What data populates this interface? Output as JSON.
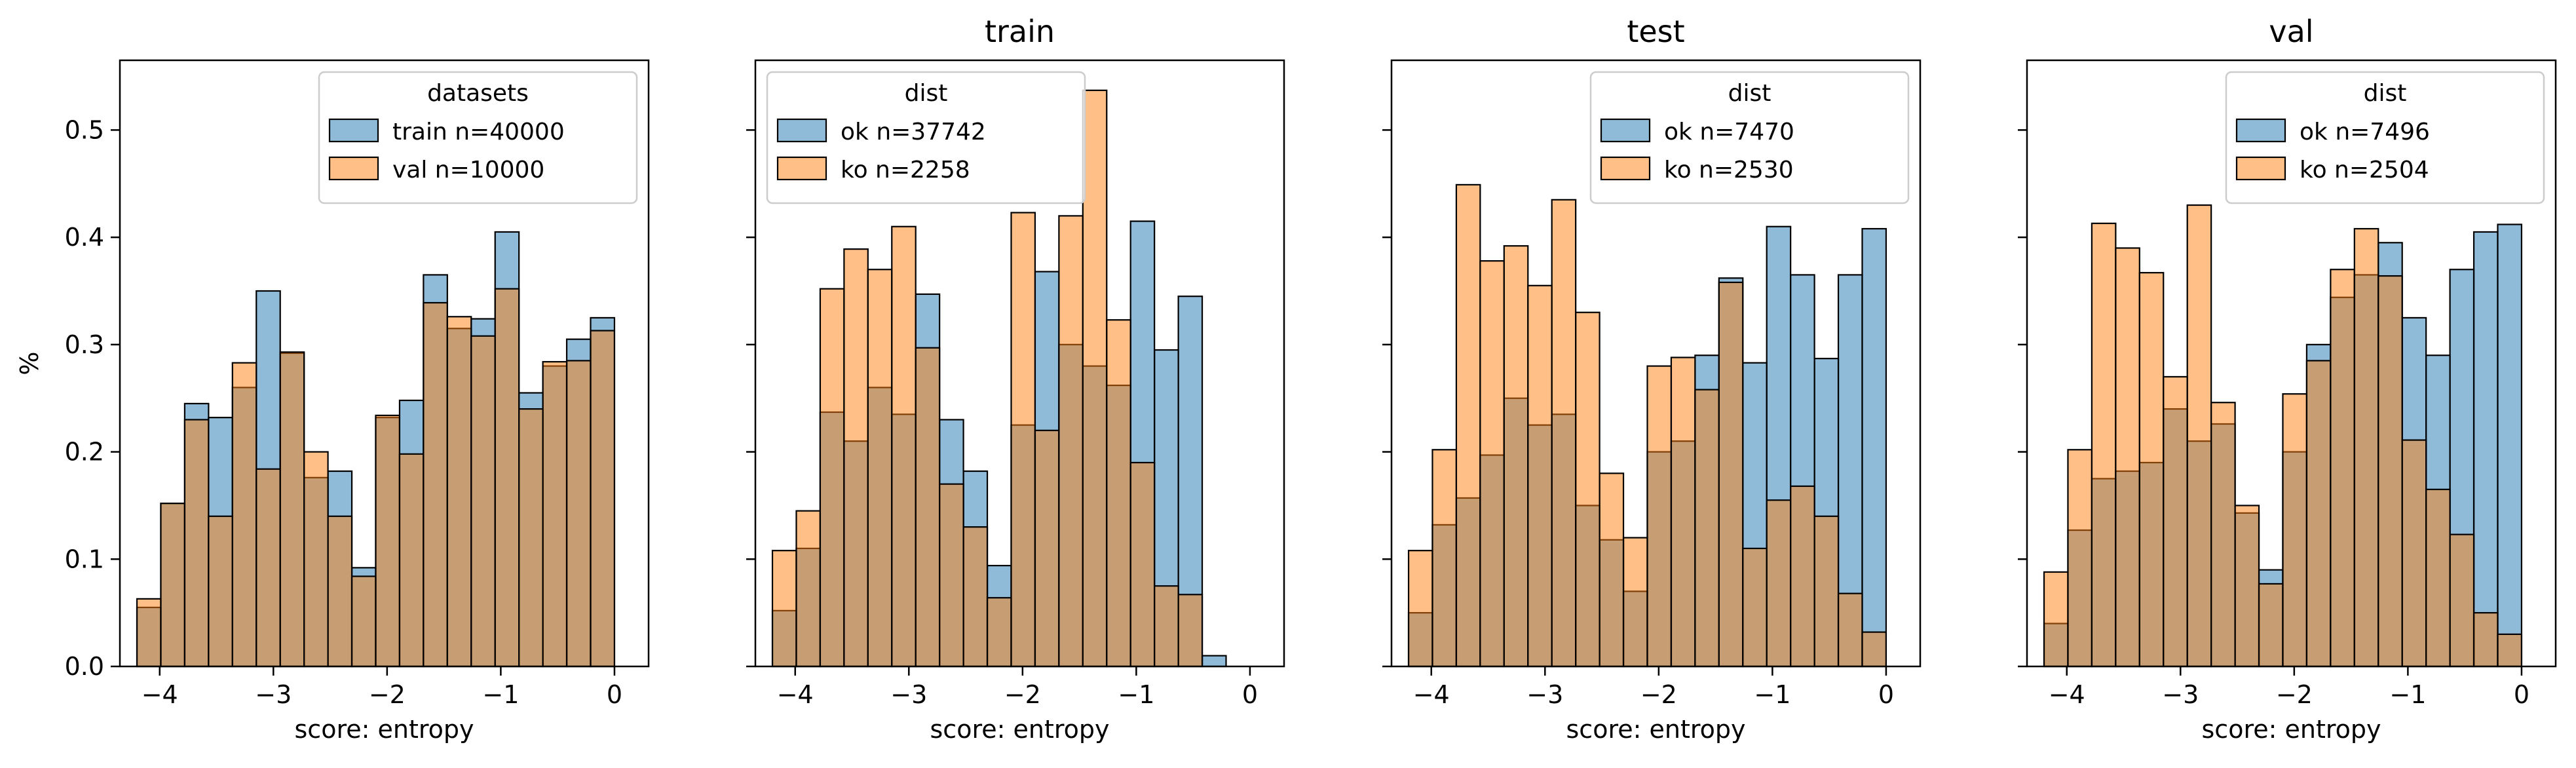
{
  "chart_data": [
    {
      "type": "bar",
      "subtype": "histogram",
      "title": "",
      "xlabel": "score: entropy",
      "ylabel": "%",
      "xlim": [
        -4.35,
        0.3
      ],
      "ylim": [
        0,
        0.565
      ],
      "xticks": [
        "−4",
        "−3",
        "−2",
        "−1",
        "0"
      ],
      "xtick_values": [
        -4,
        -3,
        -2,
        -1,
        0
      ],
      "yticks": [
        "0.0",
        "0.1",
        "0.2",
        "0.3",
        "0.4",
        "0.5"
      ],
      "ytick_values": [
        0,
        0.1,
        0.2,
        0.3,
        0.4,
        0.5
      ],
      "show_yticklabels": true,
      "bin_edges": [
        -4.2,
        -3.99,
        -3.78,
        -3.57,
        -3.36,
        -3.15,
        -2.94,
        -2.73,
        -2.52,
        -2.31,
        -2.1,
        -1.89,
        -1.68,
        -1.47,
        -1.26,
        -1.05,
        -0.84,
        -0.63,
        -0.42,
        -0.21,
        0.0
      ],
      "legend": {
        "title": "datasets",
        "position": "upper right"
      },
      "series": [
        {
          "name": "train n=40000",
          "color": "#1f77b4",
          "values": [
            0.055,
            0.152,
            0.245,
            0.232,
            0.26,
            0.35,
            0.292,
            0.176,
            0.182,
            0.092,
            0.232,
            0.248,
            0.365,
            0.315,
            0.324,
            0.405,
            0.255,
            0.28,
            0.305,
            0.325
          ]
        },
        {
          "name": "val n=10000",
          "color": "#ff7f0e",
          "values": [
            0.063,
            0.152,
            0.23,
            0.14,
            0.283,
            0.184,
            0.293,
            0.2,
            0.14,
            0.084,
            0.234,
            0.198,
            0.339,
            0.326,
            0.308,
            0.352,
            0.24,
            0.284,
            0.285,
            0.313
          ]
        }
      ]
    },
    {
      "type": "bar",
      "subtype": "histogram",
      "title": "train",
      "xlabel": "score: entropy",
      "ylabel": "",
      "xlim": [
        -4.35,
        0.3
      ],
      "ylim": [
        0,
        0.565
      ],
      "xticks": [
        "−4",
        "−3",
        "−2",
        "−1",
        "0"
      ],
      "xtick_values": [
        -4,
        -3,
        -2,
        -1,
        0
      ],
      "yticks": [
        "0.0",
        "0.1",
        "0.2",
        "0.3",
        "0.4",
        "0.5"
      ],
      "ytick_values": [
        0,
        0.1,
        0.2,
        0.3,
        0.4,
        0.5
      ],
      "show_yticklabels": false,
      "bin_edges": [
        -4.2,
        -3.99,
        -3.78,
        -3.57,
        -3.36,
        -3.15,
        -2.94,
        -2.73,
        -2.52,
        -2.31,
        -2.1,
        -1.89,
        -1.68,
        -1.47,
        -1.26,
        -1.05,
        -0.84,
        -0.63,
        -0.42,
        -0.21,
        0.0
      ],
      "legend": {
        "title": "dist",
        "position": "upper left"
      },
      "series": [
        {
          "name": "ok n=37742",
          "color": "#1f77b4",
          "values": [
            0.052,
            0.11,
            0.237,
            0.21,
            0.26,
            0.235,
            0.347,
            0.23,
            0.182,
            0.094,
            0.225,
            0.368,
            0.3,
            0.28,
            0.262,
            0.415,
            0.295,
            0.345,
            0.01,
            0.0
          ]
        },
        {
          "name": "ko n=2258",
          "color": "#ff7f0e",
          "values": [
            0.108,
            0.145,
            0.352,
            0.389,
            0.37,
            0.41,
            0.297,
            0.17,
            0.13,
            0.064,
            0.423,
            0.22,
            0.42,
            0.537,
            0.323,
            0.19,
            0.075,
            0.067,
            0.0,
            0.0
          ]
        }
      ]
    },
    {
      "type": "bar",
      "subtype": "histogram",
      "title": "test",
      "xlabel": "score: entropy",
      "ylabel": "",
      "xlim": [
        -4.35,
        0.3
      ],
      "ylim": [
        0,
        0.565
      ],
      "xticks": [
        "−4",
        "−3",
        "−2",
        "−1",
        "0"
      ],
      "xtick_values": [
        -4,
        -3,
        -2,
        -1,
        0
      ],
      "yticks": [
        "0.0",
        "0.1",
        "0.2",
        "0.3",
        "0.4",
        "0.5"
      ],
      "ytick_values": [
        0,
        0.1,
        0.2,
        0.3,
        0.4,
        0.5
      ],
      "show_yticklabels": false,
      "bin_edges": [
        -4.2,
        -3.99,
        -3.78,
        -3.57,
        -3.36,
        -3.15,
        -2.94,
        -2.73,
        -2.52,
        -2.31,
        -2.1,
        -1.89,
        -1.68,
        -1.47,
        -1.26,
        -1.05,
        -0.84,
        -0.63,
        -0.42,
        -0.21,
        0.0
      ],
      "legend": {
        "title": "dist",
        "position": "upper right"
      },
      "series": [
        {
          "name": "ok n=7470",
          "color": "#1f77b4",
          "values": [
            0.05,
            0.132,
            0.157,
            0.197,
            0.25,
            0.225,
            0.235,
            0.15,
            0.118,
            0.07,
            0.2,
            0.21,
            0.29,
            0.362,
            0.283,
            0.41,
            0.365,
            0.287,
            0.365,
            0.408
          ]
        },
        {
          "name": "ko n=2530",
          "color": "#ff7f0e",
          "values": [
            0.108,
            0.202,
            0.449,
            0.378,
            0.392,
            0.355,
            0.435,
            0.33,
            0.18,
            0.12,
            0.28,
            0.288,
            0.258,
            0.358,
            0.11,
            0.155,
            0.168,
            0.14,
            0.068,
            0.032
          ]
        }
      ]
    },
    {
      "type": "bar",
      "subtype": "histogram",
      "title": "val",
      "xlabel": "score: entropy",
      "ylabel": "",
      "xlim": [
        -4.35,
        0.3
      ],
      "ylim": [
        0,
        0.565
      ],
      "xticks": [
        "−4",
        "−3",
        "−2",
        "−1",
        "0"
      ],
      "xtick_values": [
        -4,
        -3,
        -2,
        -1,
        0
      ],
      "yticks": [
        "0.0",
        "0.1",
        "0.2",
        "0.3",
        "0.4",
        "0.5"
      ],
      "ytick_values": [
        0,
        0.1,
        0.2,
        0.3,
        0.4,
        0.5
      ],
      "show_yticklabels": false,
      "bin_edges": [
        -4.2,
        -3.99,
        -3.78,
        -3.57,
        -3.36,
        -3.15,
        -2.94,
        -2.73,
        -2.52,
        -2.31,
        -2.1,
        -1.89,
        -1.68,
        -1.47,
        -1.26,
        -1.05,
        -0.84,
        -0.63,
        -0.42,
        -0.21,
        0.0
      ],
      "legend": {
        "title": "dist",
        "position": "upper right"
      },
      "series": [
        {
          "name": "ok n=7496",
          "color": "#1f77b4",
          "values": [
            0.04,
            0.127,
            0.175,
            0.182,
            0.19,
            0.24,
            0.21,
            0.226,
            0.143,
            0.09,
            0.2,
            0.3,
            0.344,
            0.365,
            0.395,
            0.325,
            0.29,
            0.37,
            0.405,
            0.412
          ]
        },
        {
          "name": "ko n=2504",
          "color": "#ff7f0e",
          "values": [
            0.088,
            0.202,
            0.413,
            0.39,
            0.367,
            0.27,
            0.43,
            0.246,
            0.15,
            0.077,
            0.254,
            0.285,
            0.37,
            0.408,
            0.364,
            0.211,
            0.165,
            0.123,
            0.05,
            0.03
          ]
        }
      ]
    }
  ]
}
